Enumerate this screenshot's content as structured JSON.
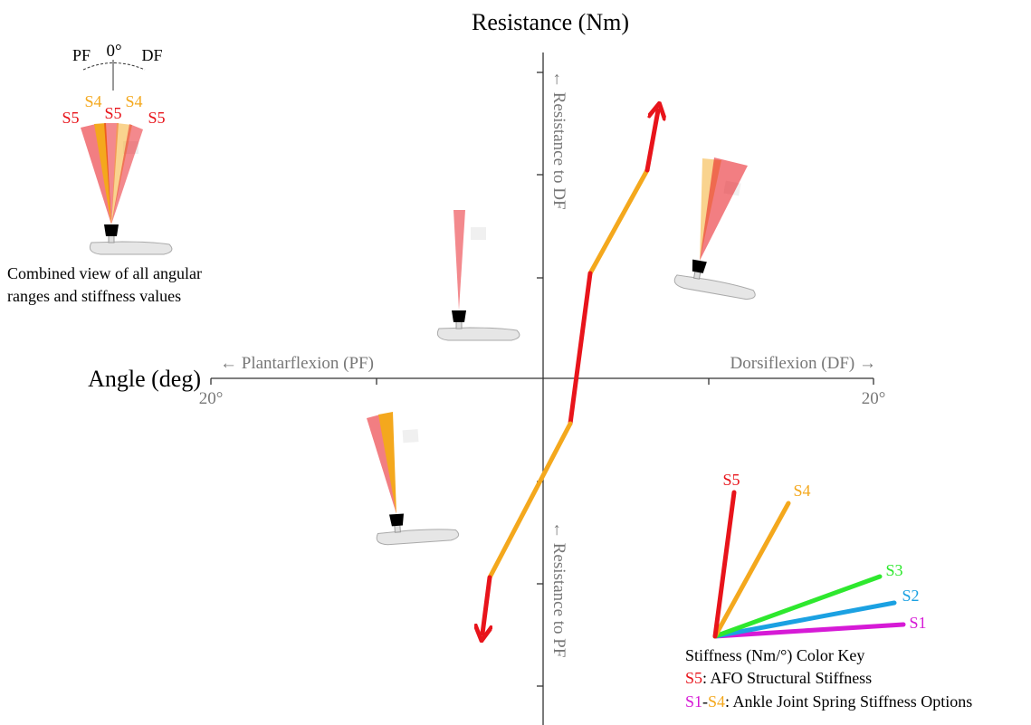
{
  "axes": {
    "y_title": "Resistance (Nm)",
    "x_title": "Angle (deg)",
    "x_left_label": "← Plantarflexion (PF)",
    "x_right_label": "Dorsiflexion (DF) →",
    "x_left_tick": "20°",
    "x_right_tick": "20°",
    "y_up_label": "← Resistance to DF",
    "y_down_label": "← Resistance to PF"
  },
  "combined_view": {
    "pf": "PF",
    "zero": "0°",
    "df": "DF",
    "labels": [
      "S5",
      "S4",
      "S5",
      "S4",
      "S5"
    ],
    "caption": [
      "Combined view of all angular",
      "ranges and stiffness values"
    ]
  },
  "key": {
    "labels": [
      "S5",
      "S4",
      "S3",
      "S2",
      "S1"
    ],
    "title": "Stiffness (Nm/°) Color Key",
    "s5_code": "S5",
    "s5_text": ": AFO Structural Stiffness",
    "s1": "S1",
    "dash": "-",
    "s4": "S4",
    "s1s4_text": ": Ankle Joint Spring Stiffness Options"
  }
}
